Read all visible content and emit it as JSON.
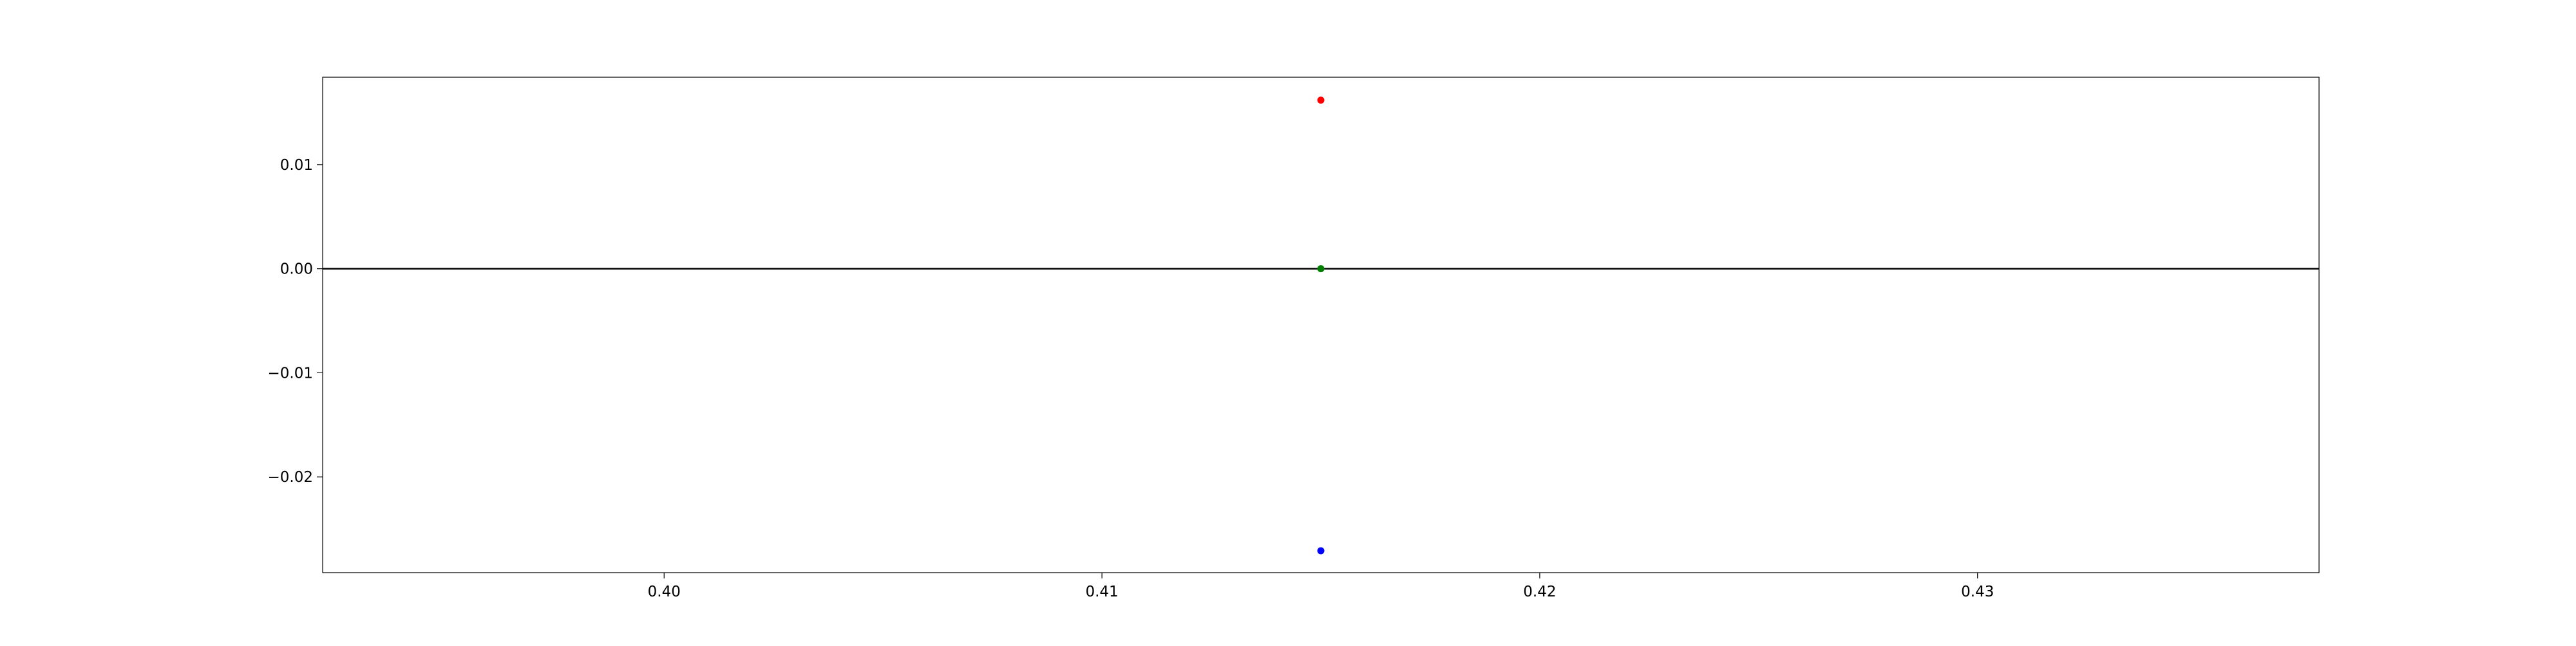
{
  "chart_data": {
    "type": "scatter",
    "title": "",
    "xlabel": "",
    "ylabel": "",
    "xlim": [
      0.3922,
      0.4378
    ],
    "ylim": [
      -0.0292,
      0.0184
    ],
    "grid": false,
    "legend": "none",
    "x_ticks": [
      0.4,
      0.41,
      0.42,
      0.43
    ],
    "x_tick_labels": [
      "0.40",
      "0.41",
      "0.42",
      "0.43"
    ],
    "y_ticks": [
      0.01,
      0.0,
      -0.01,
      -0.02
    ],
    "y_tick_labels": [
      "0.01",
      "0.00",
      "−0.01",
      "−0.02"
    ],
    "hlines": [
      {
        "y": 0.0,
        "color": "#000000"
      }
    ],
    "series": [
      {
        "color": "#ff0000",
        "x": [
          0.415
        ],
        "y": [
          0.0162
        ]
      },
      {
        "color": "#008000",
        "x": [
          0.415
        ],
        "y": [
          0.0
        ]
      },
      {
        "color": "#0000ff",
        "x": [
          0.415
        ],
        "y": [
          -0.0271
        ]
      }
    ]
  }
}
